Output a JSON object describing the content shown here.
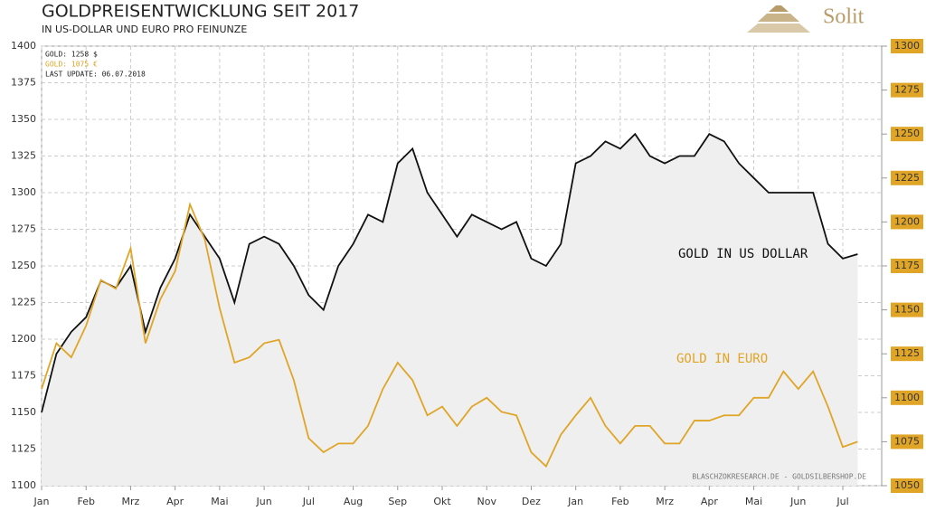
{
  "chart_data": {
    "type": "line",
    "title": "GOLDPREISENTWICKLUNG SEIT 2017",
    "subtitle": "IN US-DOLLAR UND EURO PRO FEINUNZE",
    "logo": "Solit",
    "info": [
      "GOLD: 1258 $",
      "GOLD: 1075 €",
      "LAST UPDATE: 06.07.2018"
    ],
    "source": "BLASCHZOKRESEARCH.DE  -  GOLDSILBERSHOP.DE",
    "categories": [
      "Jan",
      null,
      null,
      "Feb",
      null,
      null,
      "Mrz",
      null,
      null,
      "Apr",
      null,
      null,
      "Mai",
      null,
      null,
      "Jun",
      null,
      null,
      "Jul",
      null,
      null,
      "Aug",
      null,
      null,
      "Sep",
      null,
      null,
      "Okt",
      null,
      null,
      "Nov",
      null,
      null,
      "Dez",
      null,
      null,
      "Jan",
      null,
      null,
      "Feb",
      null,
      null,
      "Mrz",
      null,
      null,
      "Apr",
      null,
      null,
      "Mai",
      null,
      null,
      "Jun",
      null,
      null,
      "Jul",
      null
    ],
    "series": [
      {
        "name": "GOLD IN US DOLLAR",
        "color": "#111111",
        "fill": "#efefef",
        "values": [
          1150,
          1190,
          1205,
          1215,
          1240,
          1235,
          1250,
          1205,
          1235,
          1255,
          1285,
          1270,
          1255,
          1225,
          1265,
          1270,
          1265,
          1250,
          1230,
          1220,
          1250,
          1265,
          1285,
          1280,
          1320,
          1330,
          1300,
          1285,
          1270,
          1285,
          1280,
          1275,
          1280,
          1255,
          1250,
          1265,
          1320,
          1325,
          1335,
          1330,
          1340,
          1325,
          1320,
          1325,
          1325,
          1340,
          1335,
          1320,
          1310,
          1300,
          1300,
          1300,
          1300,
          1265,
          1255,
          1258
        ]
      },
      {
        "name": "GOLD IN EURO",
        "color": "#e0a526",
        "axis": "y2",
        "values": [
          1105,
          1131,
          1123,
          1141,
          1167,
          1162,
          1185,
          1131,
          1156,
          1172,
          1210,
          1190,
          1151,
          1120,
          1123,
          1131,
          1133,
          1110,
          1077,
          1069,
          1074,
          1074,
          1084,
          1105,
          1120,
          1110,
          1090,
          1095,
          1084,
          1095,
          1100,
          1092,
          1090,
          1069,
          1061,
          1079,
          1090,
          1100,
          1084,
          1074,
          1084,
          1084,
          1074,
          1074,
          1087,
          1087,
          1090,
          1090,
          1100,
          1100,
          1115,
          1105,
          1115,
          1095,
          1072,
          1075
        ]
      }
    ],
    "ylim": [
      1100,
      1400
    ],
    "yticks": [
      1100,
      1125,
      1150,
      1175,
      1200,
      1225,
      1250,
      1275,
      1300,
      1325,
      1350,
      1375,
      1400
    ],
    "y2lim": [
      1050,
      1300
    ],
    "y2ticks": [
      1050,
      1075,
      1100,
      1125,
      1150,
      1175,
      1200,
      1225,
      1250,
      1275,
      1300
    ],
    "grid": true
  }
}
